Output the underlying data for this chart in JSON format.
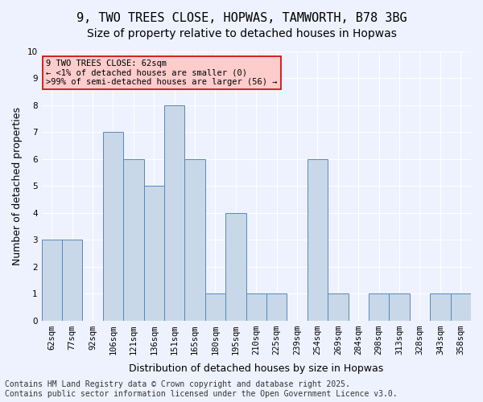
{
  "title": "9, TWO TREES CLOSE, HOPWAS, TAMWORTH, B78 3BG",
  "subtitle": "Size of property relative to detached houses in Hopwas",
  "xlabel": "Distribution of detached houses by size in Hopwas",
  "ylabel": "Number of detached properties",
  "categories": [
    "62sqm",
    "77sqm",
    "92sqm",
    "106sqm",
    "121sqm",
    "136sqm",
    "151sqm",
    "165sqm",
    "180sqm",
    "195sqm",
    "210sqm",
    "225sqm",
    "239sqm",
    "254sqm",
    "269sqm",
    "284sqm",
    "298sqm",
    "313sqm",
    "328sqm",
    "343sqm",
    "358sqm"
  ],
  "values": [
    3,
    3,
    0,
    7,
    6,
    5,
    8,
    6,
    1,
    4,
    1,
    1,
    0,
    6,
    1,
    0,
    1,
    1,
    0,
    1,
    1
  ],
  "bar_color": "#c8d8e8",
  "bar_edge_color": "#5588bb",
  "highlight_index": 0,
  "annotation_box_text": "9 TWO TREES CLOSE: 62sqm\n← <1% of detached houses are smaller (0)\n>99% of semi-detached houses are larger (56) →",
  "annotation_box_color": "#ffcccc",
  "annotation_box_edge_color": "#cc0000",
  "ylim": [
    0,
    10
  ],
  "yticks": [
    0,
    1,
    2,
    3,
    4,
    5,
    6,
    7,
    8,
    9,
    10
  ],
  "footer": "Contains HM Land Registry data © Crown copyright and database right 2025.\nContains public sector information licensed under the Open Government Licence v3.0.",
  "background_color": "#eef2ff",
  "grid_color": "#ffffff",
  "title_fontsize": 11,
  "subtitle_fontsize": 10,
  "axis_label_fontsize": 9,
  "tick_fontsize": 7.5,
  "footer_fontsize": 7
}
